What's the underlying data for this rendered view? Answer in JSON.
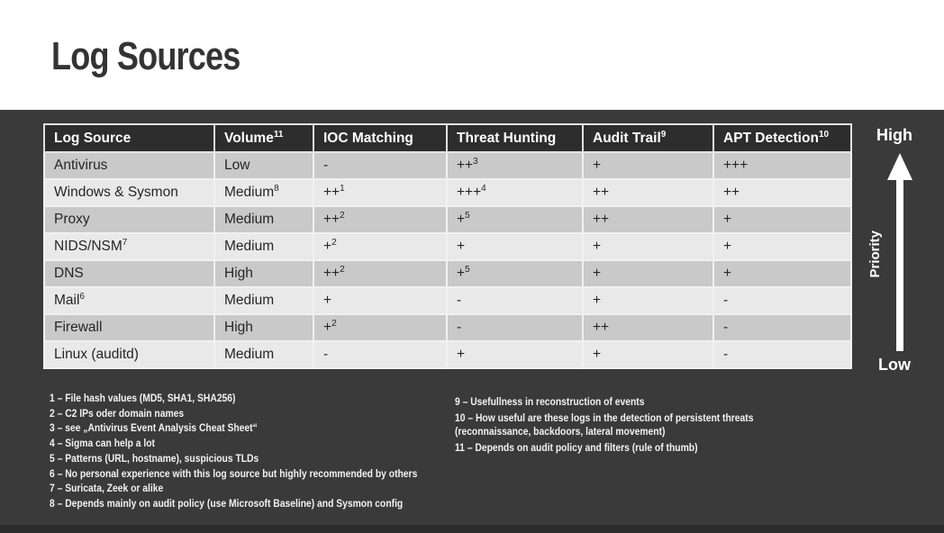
{
  "title": "Log Sources",
  "table": {
    "headers": [
      {
        "t": "Log Source"
      },
      {
        "t": "Volume",
        "sup": "11"
      },
      {
        "t": "IOC Matching"
      },
      {
        "t": "Threat Hunting"
      },
      {
        "t": "Audit Trail",
        "sup": "9"
      },
      {
        "t": "APT Detection",
        "sup": "10"
      }
    ],
    "rows": [
      [
        {
          "t": "Antivirus"
        },
        {
          "t": "Low"
        },
        {
          "t": "-"
        },
        {
          "t": "++",
          "sup": "3"
        },
        {
          "t": "+"
        },
        {
          "t": "+++"
        }
      ],
      [
        {
          "t": "Windows & Sysmon"
        },
        {
          "t": "Medium",
          "sup": "8"
        },
        {
          "t": "++",
          "sup": "1"
        },
        {
          "t": "+++",
          "sup": "4"
        },
        {
          "t": "++"
        },
        {
          "t": "++"
        }
      ],
      [
        {
          "t": "Proxy"
        },
        {
          "t": "Medium"
        },
        {
          "t": "++",
          "sup": "2"
        },
        {
          "t": "+",
          "sup": "5"
        },
        {
          "t": "++"
        },
        {
          "t": "+"
        }
      ],
      [
        {
          "t": "NIDS/NSM",
          "sup": "7"
        },
        {
          "t": "Medium"
        },
        {
          "t": "+",
          "sup": "2"
        },
        {
          "t": "+"
        },
        {
          "t": "+"
        },
        {
          "t": "+"
        }
      ],
      [
        {
          "t": "DNS"
        },
        {
          "t": "High"
        },
        {
          "t": "++",
          "sup": "2"
        },
        {
          "t": "+",
          "sup": "5"
        },
        {
          "t": "+"
        },
        {
          "t": "+"
        }
      ],
      [
        {
          "t": "Mail",
          "sup": "6"
        },
        {
          "t": "Medium"
        },
        {
          "t": "+"
        },
        {
          "t": "-"
        },
        {
          "t": "+"
        },
        {
          "t": "-"
        }
      ],
      [
        {
          "t": "Firewall"
        },
        {
          "t": "High"
        },
        {
          "t": "+",
          "sup": "2"
        },
        {
          "t": "-"
        },
        {
          "t": "++"
        },
        {
          "t": "-"
        }
      ],
      [
        {
          "t": "Linux (auditd)"
        },
        {
          "t": "Medium"
        },
        {
          "t": "-"
        },
        {
          "t": "+"
        },
        {
          "t": "+"
        },
        {
          "t": "-"
        }
      ]
    ]
  },
  "priority_legend": {
    "high": "High",
    "axis": "Priority",
    "low": "Low"
  },
  "footnotes_left": [
    "1 – File hash values (MD5, SHA1, SHA256)",
    "2 – C2 IPs oder domain names",
    "3 – see „Antivirus Event Analysis Cheat Sheet“",
    "4 – Sigma can help a lot",
    "5 – Patterns (URL, hostname), suspicious TLDs",
    "6 – No personal experience with this log source but highly recommended by others",
    "7 – Suricata, Zeek or alike",
    "8 – Depends mainly on audit policy (use Microsoft Baseline) and Sysmon config"
  ],
  "footnotes_right": [
    {
      "lines": [
        "9 – Usefullness in reconstruction of events"
      ]
    },
    {
      "lines": [
        "10 – How useful are these logs in the detection of persistent threats",
        "(reconnaissance, backdoors, lateral movement)"
      ]
    },
    {
      "lines": [
        "11 – Depends on audit policy and filters (rule of thumb)"
      ]
    }
  ],
  "colors": {
    "slide_background": "#3a3a3a",
    "header_row_bg": "#2d2d2d",
    "row_dark": "#c9c9c9",
    "row_light": "#e9e9e9",
    "text_on_dark": "#ffffff",
    "title_text": "#333333"
  }
}
